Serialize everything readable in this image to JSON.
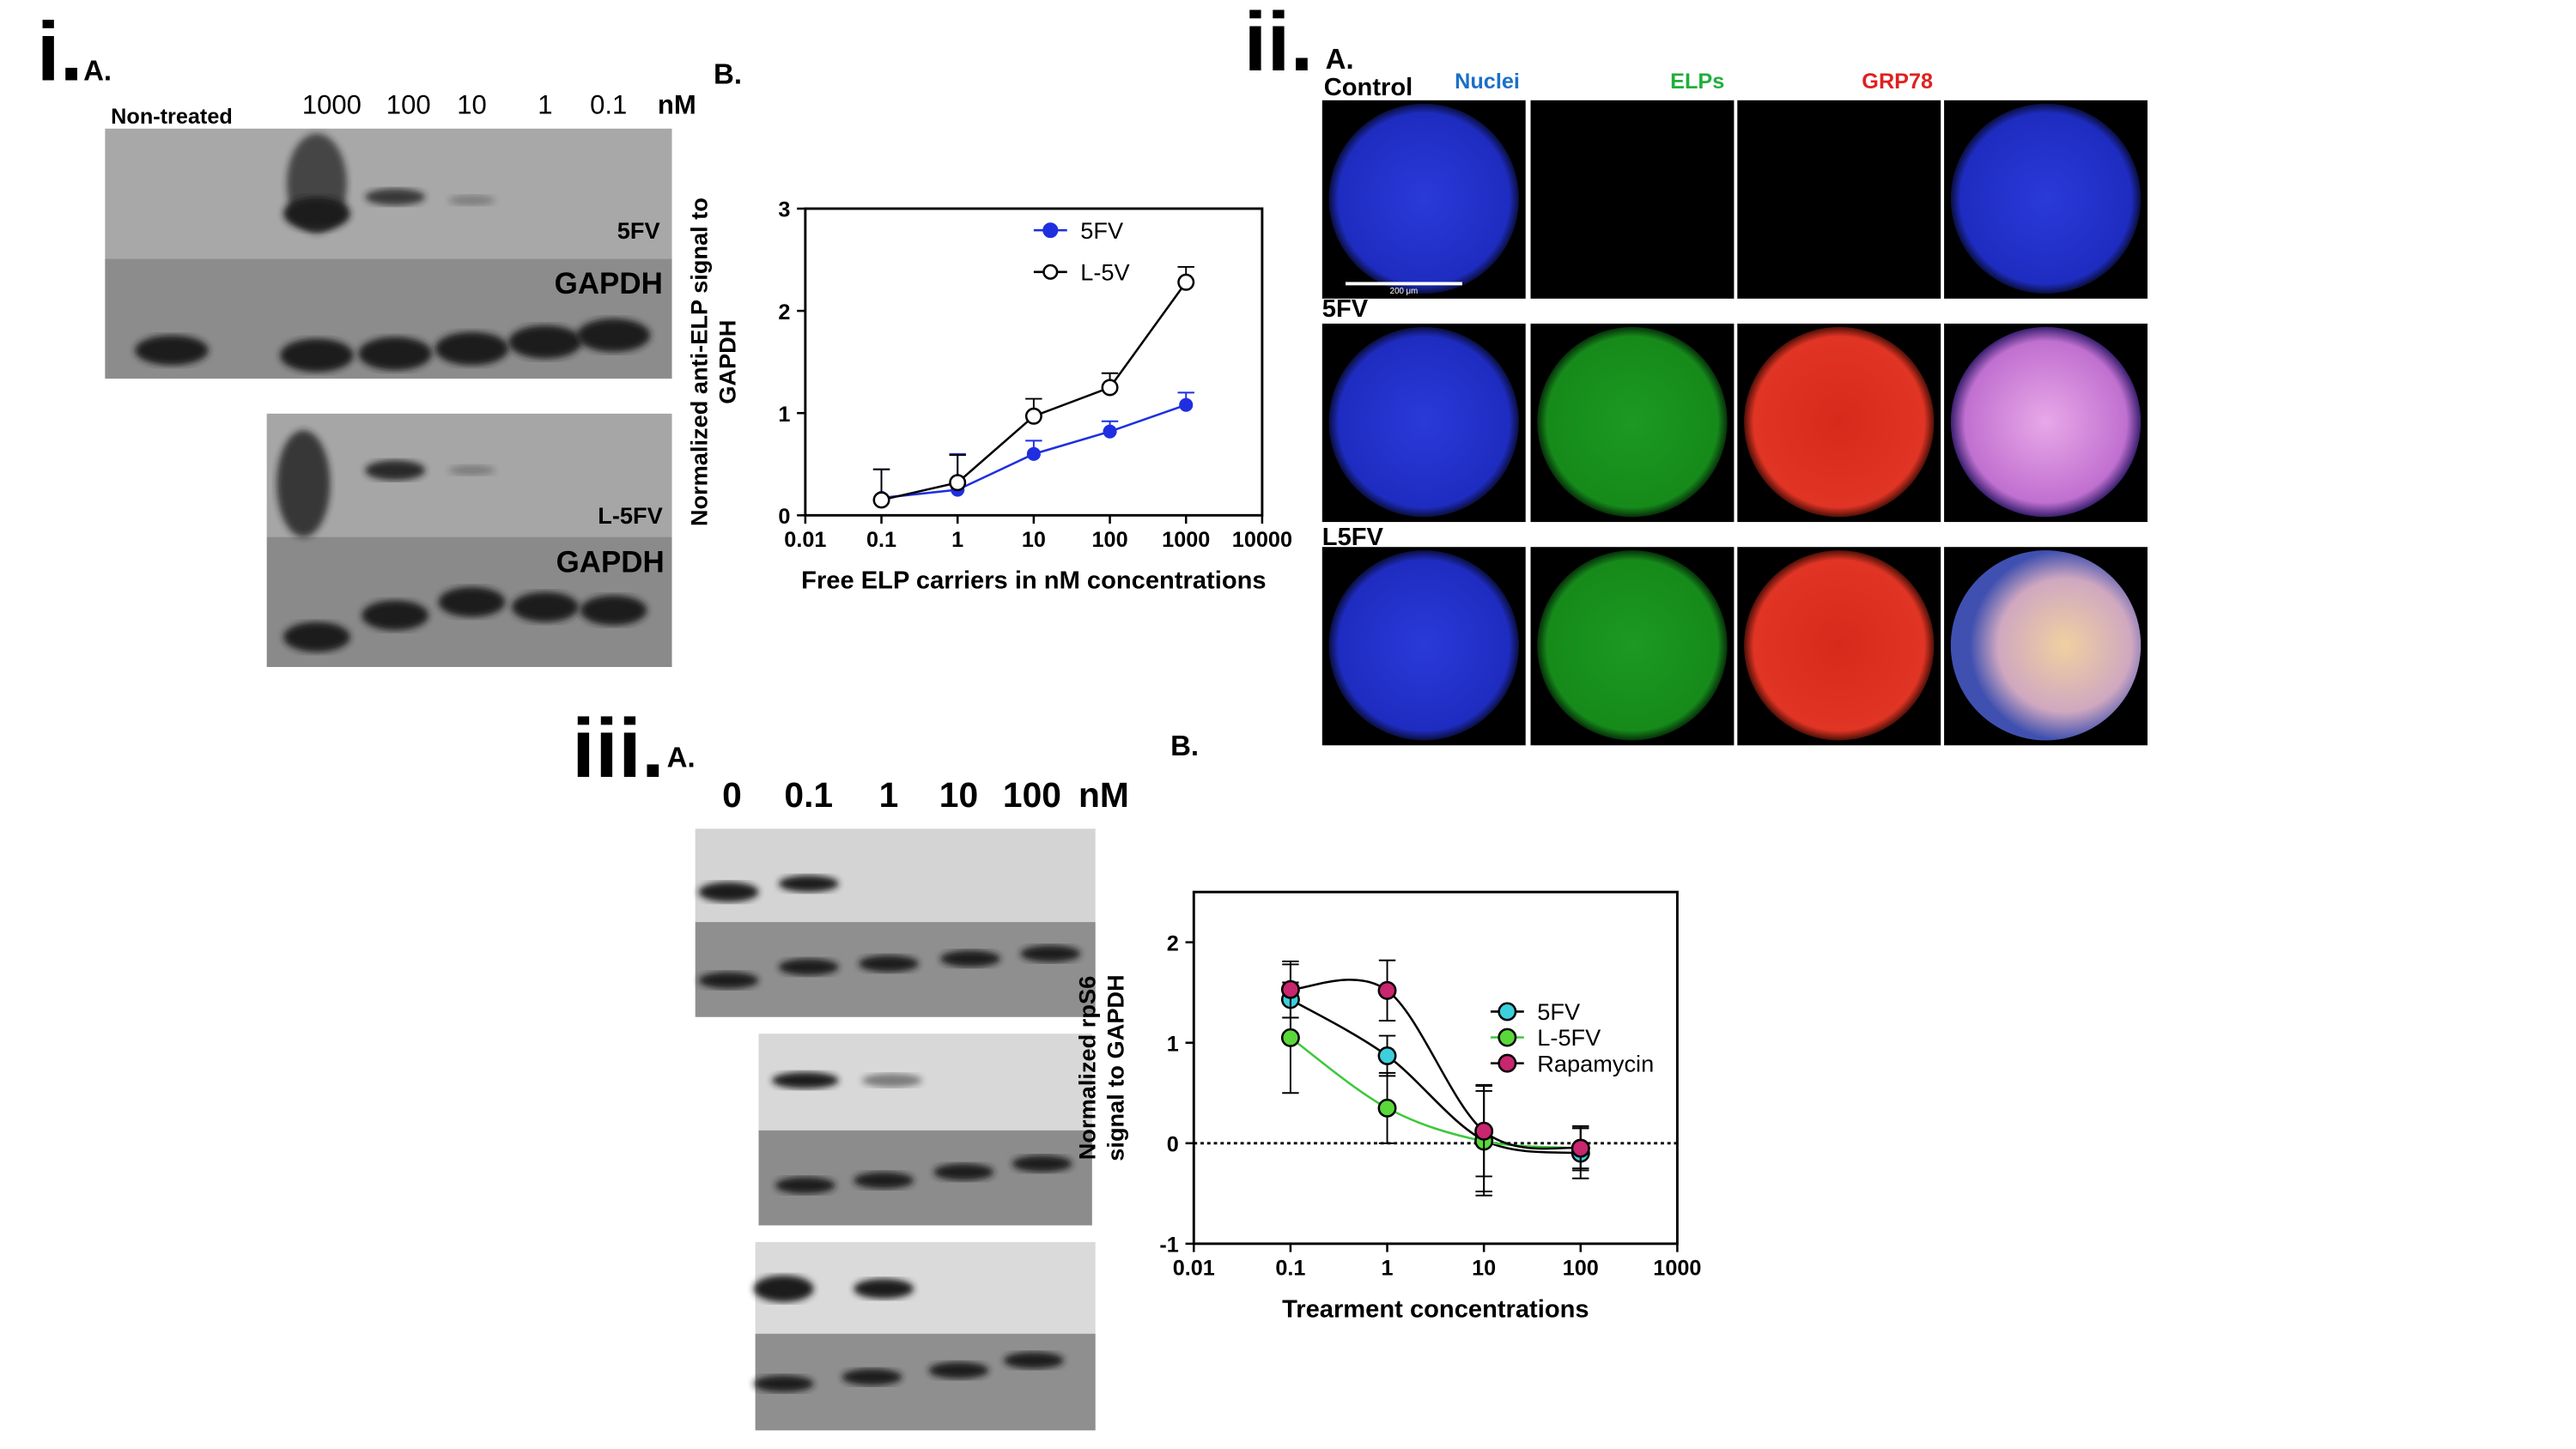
{
  "panel_i": {
    "label": "i.",
    "sub_a": "A.",
    "sub_b": "B.",
    "lanes": [
      "Non-treated",
      "1000",
      "100",
      "10",
      "1",
      "0.1",
      "nM"
    ],
    "blot_labels": [
      "5FV",
      "GAPDH",
      "L-5FV",
      "GAPDH"
    ]
  },
  "panel_ii": {
    "label": "ii.",
    "sub_a": "A.",
    "rows": [
      "Control",
      "5FV",
      "L5FV"
    ],
    "channels": [
      "Nuclei",
      "ELPs",
      "GRP78"
    ],
    "scale_bar": "200 μm"
  },
  "panel_iii": {
    "label": "iii.",
    "sub_a": "A.",
    "sub_b": "B.",
    "lanes": [
      "0",
      "0.1",
      "1",
      "10",
      "100",
      "nM"
    ]
  },
  "chart_data": [
    {
      "type": "line",
      "xscale": "log",
      "xlim": [
        0.01,
        10000
      ],
      "xticks": [
        0.01,
        0.1,
        1,
        10,
        100,
        1000,
        10000
      ],
      "ylim": [
        0,
        3
      ],
      "yticks": [
        0,
        1,
        2,
        3
      ],
      "error_bars": "up",
      "legend": "upper center",
      "xlabel": "Free ELP carriers in nM concentrations",
      "ylabel": [
        "Normalized anti-ELP signal to",
        "GAPDH"
      ],
      "x": [
        0.1,
        1,
        10,
        100,
        1000
      ],
      "series": [
        {
          "name": "5FV",
          "color": "#1f2fe0",
          "line_color": "#1f2fe0",
          "marker": "filled",
          "values": [
            0.17,
            0.25,
            0.6,
            0.82,
            1.08
          ],
          "errors": [
            0.28,
            0.35,
            0.13,
            0.1,
            0.12
          ]
        },
        {
          "name": "L-5V",
          "color": "#000000",
          "line_color": "#000000",
          "marker": "open",
          "values": [
            0.15,
            0.32,
            0.97,
            1.25,
            2.28
          ],
          "errors": [
            0.3,
            0.27,
            0.17,
            0.14,
            0.15
          ]
        }
      ]
    },
    {
      "type": "line",
      "xscale": "log",
      "xlim": [
        0.01,
        1000
      ],
      "xticks": [
        0.01,
        0.1,
        1,
        10,
        100,
        1000
      ],
      "ylim": [
        -1,
        2.5
      ],
      "yticks": [
        -1,
        0,
        1,
        2
      ],
      "error_bars": "both",
      "legend": "center right",
      "zero_line": true,
      "xlabel": "Trearment concentrations",
      "ylabel": [
        "Normalized rpS6",
        "signal to GAPDH"
      ],
      "x": [
        0.1,
        1,
        10,
        100
      ],
      "series": [
        {
          "name": "5FV",
          "color": "#3cd0dc",
          "line_color": "#000000",
          "marker": "filled",
          "values": [
            1.43,
            0.87,
            0.03,
            -0.1
          ],
          "errors": [
            0.35,
            0.2,
            0.55,
            0.25
          ]
        },
        {
          "name": "L-5FV",
          "color": "#5ad83a",
          "line_color": "#3cc83c",
          "marker": "filled",
          "values": [
            1.05,
            0.35,
            0.02,
            -0.05
          ],
          "errors": [
            0.55,
            0.35,
            0.5,
            0.2
          ]
        },
        {
          "name": "Rapamycin",
          "color": "#c8266e",
          "line_color": "#000000",
          "marker": "filled",
          "values": [
            1.53,
            1.52,
            0.12,
            -0.05
          ],
          "errors": [
            0.28,
            0.3,
            0.45,
            0.22
          ]
        }
      ]
    }
  ]
}
